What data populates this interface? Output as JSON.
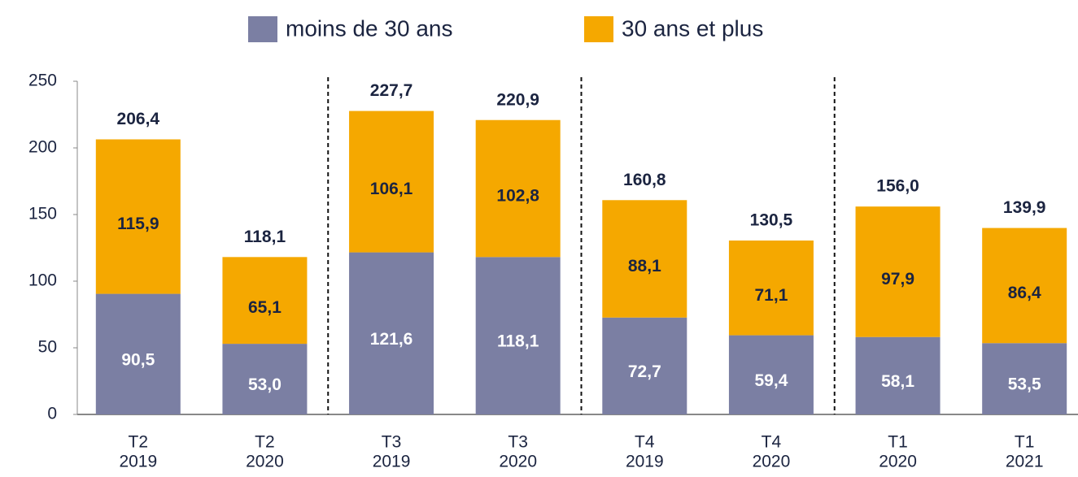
{
  "chart_data": {
    "type": "stacked_bar",
    "categories": [
      [
        "T2",
        "2019"
      ],
      [
        "T2",
        "2020"
      ],
      [
        "T3",
        "2019"
      ],
      [
        "T3",
        "2020"
      ],
      [
        "T4",
        "2019"
      ],
      [
        "T4",
        "2020"
      ],
      [
        "T1",
        "2020"
      ],
      [
        "T1",
        "2021"
      ]
    ],
    "series": [
      {
        "name": "moins de 30 ans",
        "color": "#7b7fa3",
        "values": [
          90.5,
          53.0,
          121.6,
          118.1,
          72.7,
          59.4,
          58.1,
          53.5
        ],
        "value_labels": [
          "90,5",
          "53,0",
          "121,6",
          "118,1",
          "72,7",
          "59,4",
          "58,1",
          "53,5"
        ]
      },
      {
        "name": "30 ans et plus",
        "color": "#f5a800",
        "values": [
          115.9,
          65.1,
          106.1,
          102.8,
          88.1,
          71.1,
          97.9,
          86.4
        ],
        "value_labels": [
          "115,9",
          "65,1",
          "106,1",
          "102,8",
          "88,1",
          "71,1",
          "97,9",
          "86,4"
        ]
      }
    ],
    "totals": [
      206.4,
      118.1,
      227.7,
      220.9,
      160.8,
      130.5,
      156.0,
      139.9
    ],
    "total_labels": [
      "206,4",
      "118,1",
      "227,7",
      "220,9",
      "160,8",
      "130,5",
      "156,0",
      "139,9"
    ],
    "ylim": [
      0,
      250
    ],
    "yticks": [
      0,
      50,
      100,
      150,
      200,
      250
    ]
  }
}
